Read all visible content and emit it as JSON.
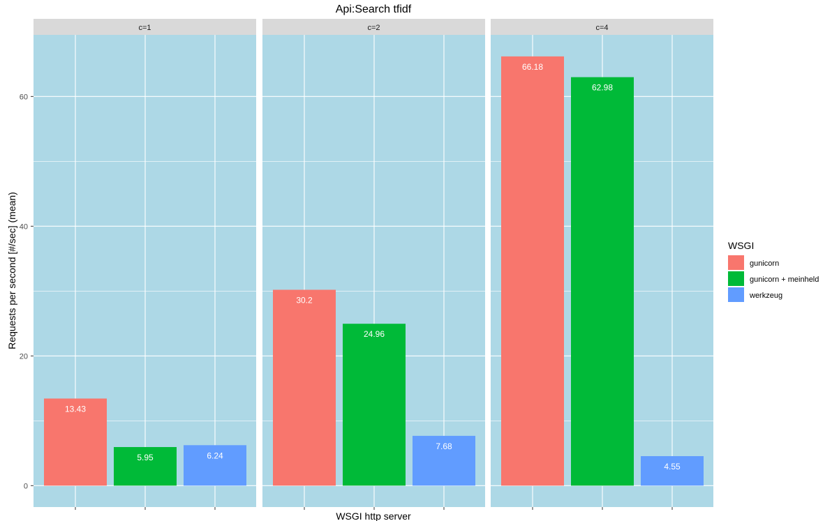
{
  "chart_data": {
    "type": "bar",
    "title": "Api:Search tfidf",
    "xlabel": "WSGI http server",
    "ylabel": "Requests per second  [#/sec] (mean)",
    "ylim": [
      -3.3,
      69.5
    ],
    "y_ticks": [
      0,
      20,
      40,
      60
    ],
    "grid": true,
    "legend_placement": "right",
    "legend_title": "WSGI",
    "panel_background": "#add8e6",
    "strip_background": "#d9d9d9",
    "grid_color": "#ffffff",
    "categories": [
      "gunicorn",
      "gunicorn + meinheld",
      "werkzeug"
    ],
    "colors": {
      "gunicorn": "#f8766d",
      "gunicorn + meinheld": "#00ba38",
      "werkzeug": "#619cff"
    },
    "panels": [
      {
        "facet": "c=1",
        "values": [
          13.43,
          5.95,
          6.24
        ],
        "labels": [
          "13.43",
          "5.95",
          "6.24"
        ]
      },
      {
        "facet": "c=2",
        "values": [
          30.2,
          24.96,
          7.68
        ],
        "labels": [
          "30.2",
          "24.96",
          "7.68"
        ]
      },
      {
        "facet": "c=4",
        "values": [
          66.18,
          62.98,
          4.55
        ],
        "labels": [
          "66.18",
          "62.98",
          "4.55"
        ]
      }
    ]
  }
}
